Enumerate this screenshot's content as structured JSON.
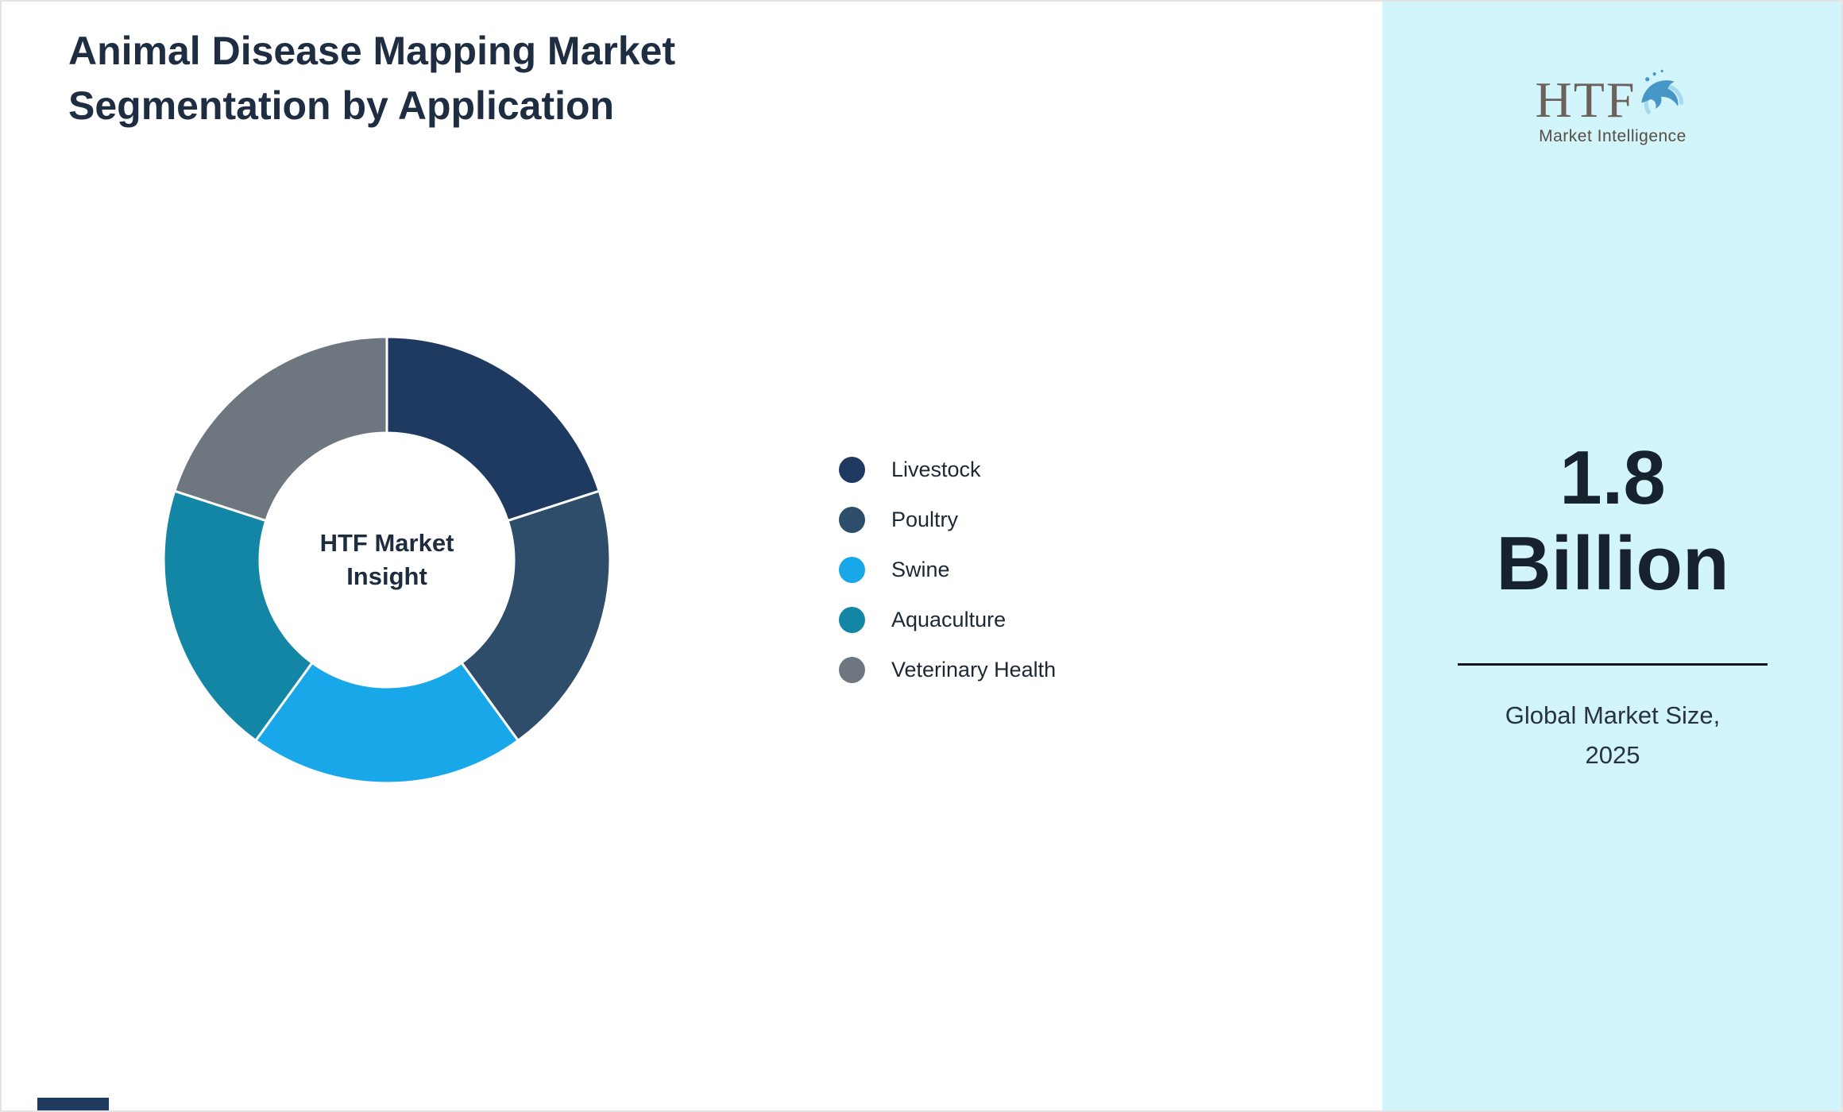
{
  "title": {
    "line1": "Animal Disease Mapping Market",
    "line2": "Segmentation by Application"
  },
  "chart_data": {
    "type": "pie",
    "variant": "donut",
    "title": "Animal Disease Mapping Market Segmentation by Application",
    "center_line1": "HTF Market",
    "center_line2": "Insight",
    "unit": "percent",
    "start_angle_deg": 0,
    "direction": "clockwise",
    "legend_position": "right",
    "segments": [
      {
        "label": "Livestock",
        "value": 20,
        "color": "#1f3a60"
      },
      {
        "label": "Poultry",
        "value": 20,
        "color": "#2e4d6b"
      },
      {
        "label": "Swine",
        "value": 20,
        "color": "#18a7e8"
      },
      {
        "label": "Aquaculture",
        "value": 20,
        "color": "#1386a5"
      },
      {
        "label": "Veterinary Health",
        "value": 20,
        "color": "#6e7780"
      }
    ]
  },
  "sidebar": {
    "logo_text": "HTF",
    "logo_subtext": "Market Intelligence",
    "value_line1": "1.8",
    "value_line2": "Billion",
    "caption_line1": "Global Market Size,",
    "caption_line2": "2025",
    "background_color": "#d2f4fb"
  }
}
